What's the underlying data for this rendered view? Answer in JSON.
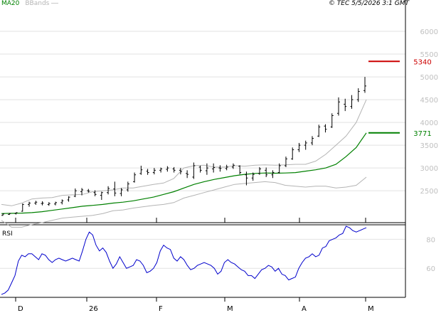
{
  "header": {
    "ma_label": "MA20",
    "bbands_label": "BBands",
    "copyright": "© TEC 5/5/2026 3:1 GMT"
  },
  "chart_data": [
    {
      "type": "candlestick",
      "role": "price",
      "y_ticks": [
        2500,
        3000,
        3500,
        4000,
        4500,
        5000,
        5500,
        6000
      ],
      "y_tick_labels": [
        "2500",
        "3000",
        "3500",
        "4000",
        "4500",
        "5000",
        "5500",
        "6000"
      ],
      "ylim": [
        1800,
        6500
      ],
      "x_ticks": [
        "D",
        "26",
        "F",
        "M",
        "A",
        "M"
      ],
      "grid": true,
      "levels": [
        {
          "label": "5340",
          "value": 5340,
          "color": "#cc0000"
        },
        {
          "label": "3771",
          "value": 3771,
          "color": "#008000"
        }
      ],
      "series": [
        {
          "name": "MA20",
          "color": "#008000",
          "values": [
            2000,
            2005,
            2010,
            2020,
            2040,
            2070,
            2100,
            2130,
            2160,
            2180,
            2200,
            2230,
            2250,
            2280,
            2320,
            2360,
            2420,
            2480,
            2560,
            2640,
            2700,
            2750,
            2790,
            2830,
            2860,
            2880,
            2890,
            2885,
            2890,
            2900,
            2930,
            2960,
            3000,
            3080,
            3250,
            3450,
            3771
          ]
        },
        {
          "name": "BBands",
          "color": "#b4b4b4",
          "upper": [
            2200,
            2170,
            2230,
            2320,
            2340,
            2350,
            2400,
            2410,
            2420,
            2480,
            2500,
            2520,
            2560,
            2560,
            2600,
            2640,
            2670,
            2770,
            3000,
            3050,
            3060,
            3020,
            3020,
            3050,
            3040,
            3060,
            3070,
            3060,
            3070,
            3080,
            3080,
            3150,
            3300,
            3500,
            3700,
            4000,
            4500
          ],
          "lower": [
            1850,
            1700,
            1700,
            1760,
            1800,
            1850,
            1900,
            1920,
            1940,
            1960,
            2000,
            2060,
            2080,
            2120,
            2150,
            2180,
            2200,
            2240,
            2340,
            2400,
            2460,
            2520,
            2580,
            2640,
            2660,
            2680,
            2700,
            2680,
            2620,
            2600,
            2580,
            2600,
            2600,
            2560,
            2580,
            2620,
            2800
          ]
        },
        {
          "name": "Price",
          "ohlc": [
            [
              1960,
              2000,
              1950,
              1990
            ],
            [
              1980,
              2010,
              1970,
              2000
            ],
            [
              2000,
              2020,
              1980,
              2020
            ],
            [
              2050,
              2220,
              2040,
              2200
            ],
            [
              2200,
              2260,
              2150,
              2230
            ],
            [
              2230,
              2280,
              2190,
              2250
            ],
            [
              2220,
              2270,
              2180,
              2230
            ],
            [
              2200,
              2250,
              2170,
              2220
            ],
            [
              2210,
              2260,
              2180,
              2240
            ],
            [
              2240,
              2310,
              2200,
              2280
            ],
            [
              2300,
              2380,
              2260,
              2360
            ],
            [
              2380,
              2550,
              2360,
              2500
            ],
            [
              2480,
              2560,
              2400,
              2520
            ],
            [
              2500,
              2540,
              2460,
              2490
            ],
            [
              2460,
              2510,
              2380,
              2420
            ],
            [
              2400,
              2480,
              2300,
              2460
            ],
            [
              2460,
              2600,
              2420,
              2550
            ],
            [
              2540,
              2700,
              2380,
              2450
            ],
            [
              2440,
              2560,
              2380,
              2520
            ],
            [
              2520,
              2700,
              2480,
              2650
            ],
            [
              2700,
              2900,
              2680,
              2850
            ],
            [
              2880,
              3050,
              2850,
              2960
            ],
            [
              2930,
              2980,
              2850,
              2900
            ],
            [
              2900,
              3000,
              2860,
              2950
            ],
            [
              2950,
              3010,
              2900,
              2980
            ],
            [
              2970,
              3040,
              2920,
              3000
            ],
            [
              2980,
              3020,
              2900,
              2950
            ],
            [
              2950,
              3000,
              2860,
              2920
            ],
            [
              2880,
              2950,
              2780,
              2860
            ],
            [
              2800,
              3120,
              2760,
              3050
            ],
            [
              3020,
              3050,
              2900,
              2950
            ],
            [
              2940,
              3100,
              2850,
              3000
            ],
            [
              2980,
              3100,
              2900,
              3010
            ],
            [
              3000,
              3060,
              2920,
              2990
            ],
            [
              2990,
              3070,
              2950,
              3020
            ],
            [
              3020,
              3100,
              2980,
              3060
            ],
            [
              3040,
              3060,
              2860,
              2900
            ],
            [
              2850,
              2920,
              2620,
              2780
            ],
            [
              2780,
              2900,
              2720,
              2860
            ],
            [
              2880,
              3020,
              2850,
              2980
            ],
            [
              2950,
              3010,
              2800,
              2850
            ],
            [
              2850,
              2950,
              2780,
              2900
            ],
            [
              2900,
              3100,
              2880,
              3050
            ],
            [
              3050,
              3250,
              3020,
              3200
            ],
            [
              3200,
              3450,
              3180,
              3400
            ],
            [
              3400,
              3550,
              3350,
              3500
            ],
            [
              3500,
              3600,
              3400,
              3550
            ],
            [
              3550,
              3700,
              3500,
              3650
            ],
            [
              3700,
              3950,
              3680,
              3900
            ],
            [
              3920,
              3960,
              3780,
              3850
            ],
            [
              3900,
              4200,
              3880,
              4150
            ],
            [
              4200,
              4550,
              4150,
              4450
            ],
            [
              4400,
              4520,
              4250,
              4350
            ],
            [
              4350,
              4600,
              4300,
              4500
            ],
            [
              4500,
              4750,
              4450,
              4680
            ],
            [
              4700,
              5000,
              4650,
              4800
            ]
          ]
        }
      ]
    },
    {
      "type": "line",
      "role": "indicator",
      "title": "RSI",
      "y_ticks": [
        60,
        80
      ],
      "y_tick_labels": [
        "60",
        "80"
      ],
      "ylim": [
        40,
        90
      ],
      "grid": true,
      "x_ticks": [
        "D",
        "26",
        "F",
        "M",
        "A",
        "M"
      ],
      "series": [
        {
          "name": "RSI",
          "color": "#0000cc",
          "values": [
            42,
            43,
            45,
            50,
            55,
            65,
            69,
            68,
            70,
            70,
            68,
            66,
            70,
            69,
            66,
            64,
            66,
            67,
            66,
            65,
            66,
            67,
            66,
            65,
            72,
            80,
            85,
            83,
            76,
            72,
            74,
            71,
            65,
            60,
            63,
            68,
            64,
            60,
            61,
            62,
            66,
            65,
            62,
            57,
            58,
            60,
            64,
            72,
            76,
            74,
            73,
            67,
            65,
            68,
            66,
            62,
            59,
            60,
            62,
            63,
            64,
            63,
            62,
            60,
            56,
            58,
            64,
            66,
            64,
            63,
            61,
            59,
            58,
            55,
            55,
            53,
            56,
            59,
            60,
            62,
            61,
            58,
            60,
            56,
            55,
            52,
            53,
            54,
            60,
            64,
            67,
            68,
            70,
            68,
            69,
            74,
            75,
            79,
            80,
            81,
            83,
            84,
            89,
            88,
            86,
            85,
            86,
            87,
            88
          ]
        }
      ]
    }
  ]
}
